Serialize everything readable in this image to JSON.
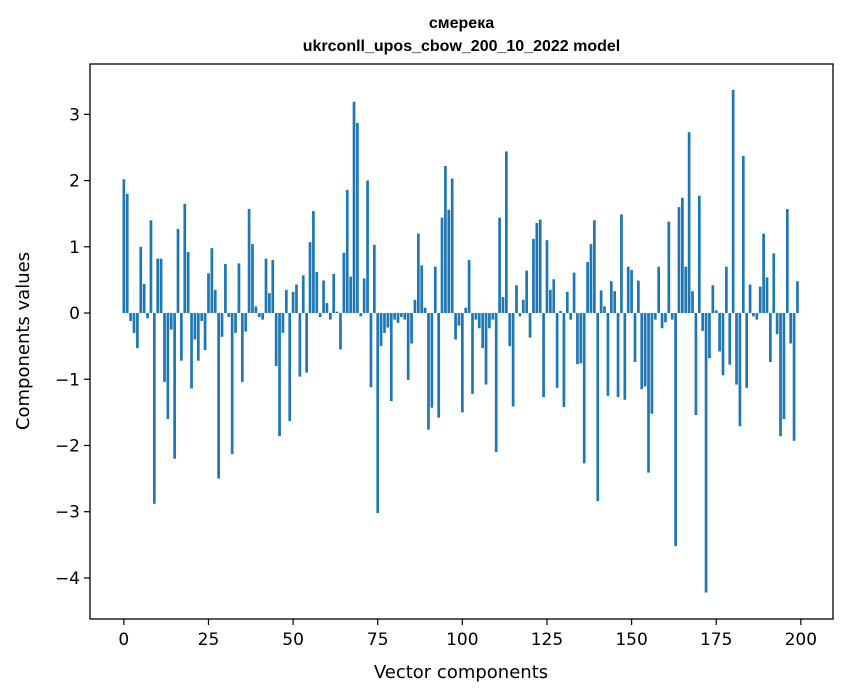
{
  "chart_data": {
    "type": "bar",
    "title_line1": "смерека",
    "title_line2": "ukrconll_upos_cbow_200_10_2022 model",
    "xlabel": "Vector components",
    "ylabel": "Components values",
    "xlim": [
      -10,
      209.5
    ],
    "ylim": [
      -4.62,
      3.76
    ],
    "xticks": [
      0,
      25,
      50,
      75,
      100,
      125,
      150,
      175,
      200
    ],
    "yticks": [
      -4,
      -3,
      -2,
      -1,
      0,
      1,
      2,
      3
    ],
    "bar_color": "#1f77b4",
    "grid": false,
    "x": [
      0,
      1,
      2,
      3,
      4,
      5,
      6,
      7,
      8,
      9,
      10,
      11,
      12,
      13,
      14,
      15,
      16,
      17,
      18,
      19,
      20,
      21,
      22,
      23,
      24,
      25,
      26,
      27,
      28,
      29,
      30,
      31,
      32,
      33,
      34,
      35,
      36,
      37,
      38,
      39,
      40,
      41,
      42,
      43,
      44,
      45,
      46,
      47,
      48,
      49,
      50,
      51,
      52,
      53,
      54,
      55,
      56,
      57,
      58,
      59,
      60,
      61,
      62,
      63,
      64,
      65,
      66,
      67,
      68,
      69,
      70,
      71,
      72,
      73,
      74,
      75,
      76,
      77,
      78,
      79,
      80,
      81,
      82,
      83,
      84,
      85,
      86,
      87,
      88,
      89,
      90,
      91,
      92,
      93,
      94,
      95,
      96,
      97,
      98,
      99,
      100,
      101,
      102,
      103,
      104,
      105,
      106,
      107,
      108,
      109,
      110,
      111,
      112,
      113,
      114,
      115,
      116,
      117,
      118,
      119,
      120,
      121,
      122,
      123,
      124,
      125,
      126,
      127,
      128,
      129,
      130,
      131,
      132,
      133,
      134,
      135,
      136,
      137,
      138,
      139,
      140,
      141,
      142,
      143,
      144,
      145,
      146,
      147,
      148,
      149,
      150,
      151,
      152,
      153,
      154,
      155,
      156,
      157,
      158,
      159,
      160,
      161,
      162,
      163,
      164,
      165,
      166,
      167,
      168,
      169,
      170,
      171,
      172,
      173,
      174,
      175,
      176,
      177,
      178,
      179,
      180,
      181,
      182,
      183,
      184,
      185,
      186,
      187,
      188,
      189,
      190,
      191,
      192,
      193,
      194,
      195,
      196,
      197,
      198,
      199
    ],
    "values": [
      2.02,
      1.8,
      -0.12,
      -0.3,
      -0.53,
      1.0,
      0.44,
      -0.08,
      1.4,
      -2.88,
      0.82,
      0.82,
      -1.04,
      -1.6,
      -0.25,
      -2.2,
      1.27,
      -0.72,
      1.65,
      0.92,
      -1.14,
      -0.4,
      -0.72,
      -0.12,
      -0.56,
      0.6,
      0.98,
      0.35,
      -2.5,
      -0.36,
      0.74,
      -0.06,
      -2.13,
      -0.3,
      0.75,
      -1.04,
      -0.28,
      1.57,
      1.04,
      0.1,
      -0.06,
      -0.1,
      0.82,
      0.3,
      0.8,
      -0.8,
      -1.86,
      -0.3,
      0.35,
      -1.63,
      0.32,
      0.43,
      -0.96,
      0.57,
      -0.9,
      1.07,
      1.54,
      0.62,
      -0.06,
      0.49,
      0.15,
      -0.1,
      0.59,
      0.02,
      -0.55,
      0.91,
      1.86,
      0.55,
      3.19,
      2.87,
      -0.05,
      0.52,
      2.0,
      -1.12,
      1.03,
      -3.02,
      -0.5,
      -0.3,
      -0.22,
      -1.33,
      -0.1,
      -0.15,
      -0.06,
      -0.1,
      -1.01,
      -0.46,
      0.2,
      1.2,
      0.72,
      0.08,
      -1.76,
      -1.43,
      0.7,
      -1.58,
      1.44,
      2.22,
      1.56,
      2.03,
      -0.4,
      -0.19,
      -1.5,
      0.08,
      0.8,
      -1.22,
      -0.1,
      -0.23,
      -0.53,
      -1.08,
      -0.23,
      -0.1,
      -2.1,
      1.44,
      0.24,
      2.44,
      -0.5,
      -1.41,
      0.42,
      -0.05,
      0.2,
      0.64,
      -0.37,
      1.12,
      1.36,
      1.41,
      -1.27,
      1.1,
      0.35,
      0.51,
      -1.13,
      0.03,
      -1.42,
      0.32,
      -0.1,
      0.61,
      -0.77,
      -0.76,
      -2.27,
      0.77,
      1.04,
      1.4,
      -2.84,
      0.34,
      0.1,
      -1.25,
      0.48,
      0.33,
      -1.27,
      1.49,
      -1.31,
      0.7,
      0.65,
      -0.74,
      0.49,
      -1.15,
      -1.11,
      -2.41,
      -1.52,
      -0.1,
      0.7,
      -0.23,
      -0.14,
      1.38,
      -0.1,
      -3.52,
      1.6,
      1.74,
      0.7,
      2.73,
      0.33,
      -1.54,
      1.77,
      -0.27,
      -4.22,
      -0.68,
      0.42,
      0.04,
      -0.58,
      -0.94,
      0.7,
      -0.78,
      3.37,
      -1.08,
      -1.71,
      2.37,
      -1.13,
      0.43,
      -0.05,
      -0.1,
      0.4,
      1.2,
      0.54,
      -0.74,
      0.9,
      -0.32,
      -1.86,
      -1.6,
      1.57,
      -0.46,
      -1.93,
      0.48
    ]
  }
}
